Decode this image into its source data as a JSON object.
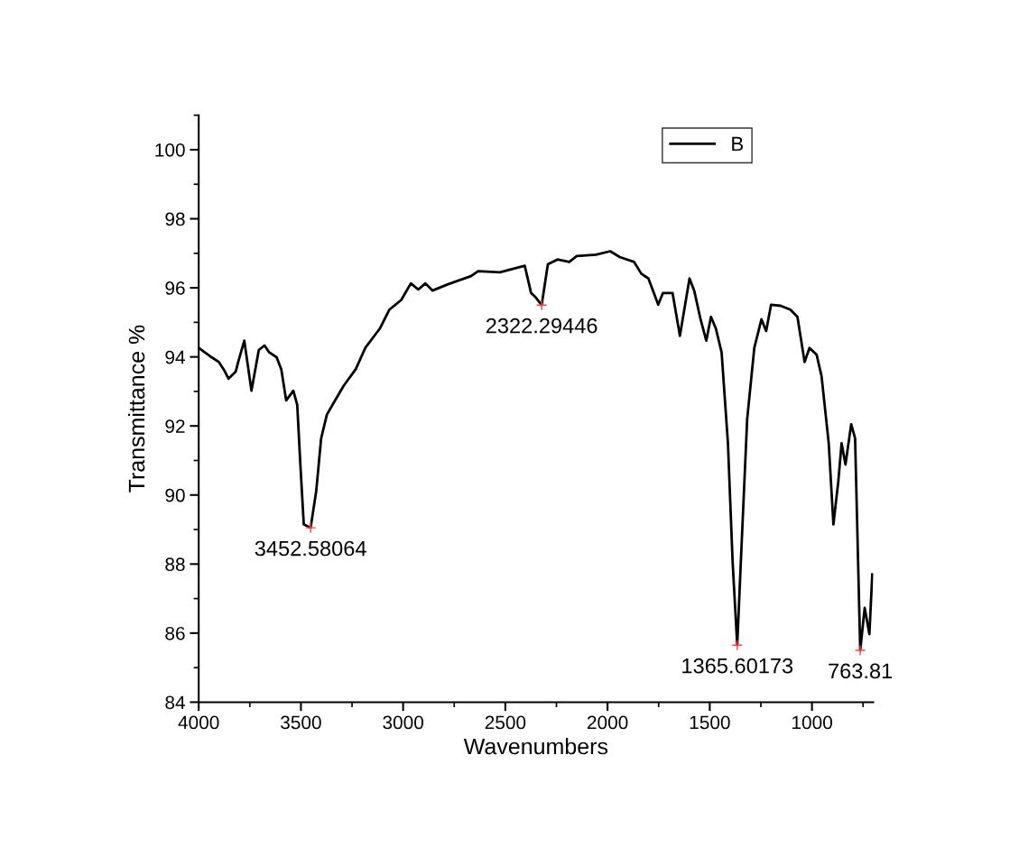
{
  "chart_data": {
    "type": "line",
    "xlabel": "Wavenumbers",
    "ylabel": "Transmittance %",
    "xlim": [
      4000,
      700
    ],
    "xticks": [
      4000,
      3500,
      3000,
      2500,
      2000,
      1500,
      1000
    ],
    "ylim": [
      84,
      101
    ],
    "yticks": [
      84,
      86,
      88,
      90,
      92,
      94,
      96,
      98,
      100
    ],
    "grid": false,
    "legend": "top right",
    "marker": "none",
    "line_style": "solid",
    "series": [
      {
        "name": "B",
        "color": "#000000",
        "x": [
          4000,
          3937,
          3901,
          3878,
          3854,
          3819,
          3807,
          3777,
          3742,
          3706,
          3678,
          3655,
          3619,
          3596,
          3572,
          3537,
          3518,
          3502,
          3486,
          3452.58064,
          3425,
          3401,
          3373,
          3326,
          3291,
          3232,
          3185,
          3114,
          3067,
          3009,
          2962,
          2926,
          2891,
          2856,
          2786,
          2668,
          2633,
          2527,
          2405,
          2374,
          2351,
          2322.29446,
          2292,
          2245,
          2187,
          2151,
          2057,
          1987,
          1940,
          1870,
          1835,
          1800,
          1752,
          1729,
          1682,
          1646,
          1599,
          1576,
          1545,
          1517,
          1494,
          1470,
          1442,
          1411,
          1388,
          1365.60173,
          1348,
          1317,
          1282,
          1247,
          1224,
          1200,
          1153,
          1106,
          1071,
          1036,
          1012,
          977,
          953,
          918,
          895,
          871,
          855,
          836,
          808,
          789,
          763.81,
          742,
          719,
          705
        ],
        "values": [
          94.26,
          93.99,
          93.85,
          93.64,
          93.37,
          93.57,
          93.85,
          94.47,
          93.02,
          94.2,
          94.33,
          94.13,
          93.99,
          93.64,
          92.74,
          93.02,
          92.61,
          90.81,
          89.15,
          89.05,
          90.12,
          91.64,
          92.33,
          92.81,
          93.16,
          93.64,
          94.26,
          94.82,
          95.37,
          95.65,
          96.13,
          95.95,
          96.13,
          95.92,
          96.09,
          96.34,
          96.48,
          96.45,
          96.64,
          95.85,
          95.72,
          95.5,
          96.68,
          96.82,
          96.75,
          96.92,
          96.96,
          97.06,
          96.89,
          96.75,
          96.41,
          96.27,
          95.51,
          95.85,
          95.85,
          94.61,
          96.27,
          95.92,
          95.09,
          94.47,
          95.16,
          94.82,
          94.13,
          91.5,
          88.05,
          85.65,
          88.05,
          92.19,
          94.26,
          95.09,
          94.75,
          95.51,
          95.48,
          95.37,
          95.16,
          93.85,
          94.26,
          94.06,
          93.44,
          91.5,
          89.15,
          90.4,
          91.5,
          90.88,
          92.05,
          91.64,
          85.5,
          86.73,
          85.97,
          87.7
        ]
      }
    ],
    "annotations": [
      {
        "text": "3452.58064",
        "x": 3452.58064,
        "y": 89.05
      },
      {
        "text": "2322.29446",
        "x": 2322.29446,
        "y": 95.5
      },
      {
        "text": "1365.60173",
        "x": 1365.60173,
        "y": 85.65
      },
      {
        "text": "763.81",
        "x": 763.81,
        "y": 85.5
      }
    ]
  }
}
